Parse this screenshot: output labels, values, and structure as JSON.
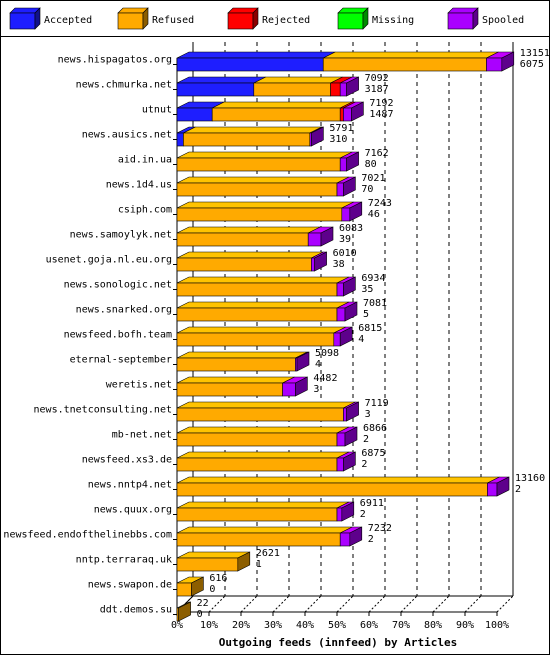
{
  "chart_data": {
    "type": "bar",
    "stacked": true,
    "orientation": "horizontal",
    "style": "3d",
    "xlabel": "Outgoing feeds (innfeed) by Articles",
    "xlim": [
      0,
      100
    ],
    "x_unit": "%",
    "x_ticks": [
      "0%",
      "10%",
      "20%",
      "30%",
      "40%",
      "50%",
      "60%",
      "70%",
      "80%",
      "90%",
      "100%"
    ],
    "grid": "vertical dashed",
    "legend_position": "top",
    "series": [
      {
        "name": "Accepted",
        "color": "#1e1eff"
      },
      {
        "name": "Refused",
        "color": "#ffaa00"
      },
      {
        "name": "Rejected",
        "color": "#ff0000"
      },
      {
        "name": "Missing",
        "color": "#00ff00"
      },
      {
        "name": "Spooled",
        "color": "#aa00ff"
      }
    ],
    "categories": [
      "news.hispagatos.org",
      "news.chmurka.net",
      "utnut",
      "news.ausics.net",
      "aid.in.ua",
      "news.1d4.us",
      "csiph.com",
      "news.samoylyk.net",
      "usenet.goja.nl.eu.org",
      "news.sonologic.net",
      "news.snarked.org",
      "newsfeed.bofh.team",
      "eternal-september",
      "weretis.net",
      "news.tnetconsulting.net",
      "mb-net.net",
      "newsfeed.xs3.de",
      "news.nntp4.net",
      "news.quux.org",
      "newsfeed.endofthelinebbs.com",
      "nntp.terraraq.uk",
      "news.swapon.de",
      "ddt.demos.su"
    ],
    "total_labels": [
      "13151",
      "7092",
      "7192",
      "5791",
      "7162",
      "7021",
      "7243",
      "6083",
      "6010",
      "6934",
      "7081",
      "6815",
      "5098",
      "4482",
      "7119",
      "6866",
      "6875",
      "13160",
      "6911",
      "7232",
      "2621",
      "616",
      "22"
    ],
    "secondary_labels": [
      "6075",
      "3187",
      "1487",
      "310",
      "80",
      "70",
      "46",
      "39",
      "38",
      "35",
      "5",
      "4",
      "4",
      "3",
      "3",
      "2",
      "2",
      "2",
      "2",
      "2",
      "1",
      "0",
      "0"
    ],
    "segments_percent": [
      [
        45.7,
        51.0,
        0,
        0,
        4.8
      ],
      [
        24.0,
        24.0,
        3.0,
        0,
        2.0
      ],
      [
        11.0,
        40.0,
        1.0,
        0,
        2.5
      ],
      [
        2.0,
        39.5,
        0,
        0,
        0.5
      ],
      [
        0,
        51.0,
        0,
        0,
        2.0
      ],
      [
        0,
        50.0,
        0,
        0,
        2.0
      ],
      [
        0,
        51.5,
        0,
        0,
        2.5
      ],
      [
        0,
        41.0,
        0,
        0,
        4.0
      ],
      [
        0,
        42.0,
        0,
        0,
        1.0
      ],
      [
        0,
        50.0,
        0,
        0,
        2.0
      ],
      [
        0,
        50.0,
        0,
        0,
        2.5
      ],
      [
        0,
        49.0,
        0,
        0,
        2.0
      ],
      [
        0,
        37.0,
        0,
        0,
        0.5
      ],
      [
        0,
        33.0,
        0,
        0,
        4.0
      ],
      [
        0,
        52.0,
        0,
        0,
        1.0
      ],
      [
        0,
        50.0,
        0,
        0,
        2.5
      ],
      [
        0,
        50.0,
        0,
        0,
        2.0
      ],
      [
        0,
        97.0,
        0,
        0,
        3.0
      ],
      [
        0,
        50.0,
        0,
        0,
        1.5
      ],
      [
        0,
        51.0,
        0,
        0,
        3.0
      ],
      [
        0,
        19.0,
        0,
        0,
        0
      ],
      [
        0,
        4.5,
        0,
        0,
        0
      ],
      [
        0,
        0.5,
        0,
        0,
        0
      ]
    ]
  }
}
